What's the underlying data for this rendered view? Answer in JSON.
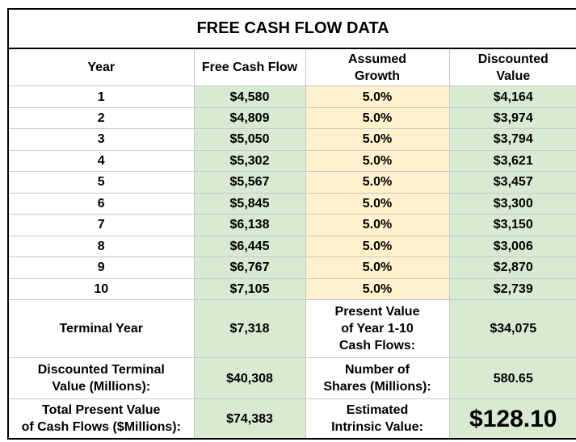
{
  "title": "FREE CASH FLOW DATA",
  "headers": {
    "year": "Year",
    "fcf": "Free Cash Flow",
    "growth_line1": "Assumed",
    "growth_line2": "Growth",
    "disc_line1": "Discounted",
    "disc_line2": "Value"
  },
  "rows": [
    {
      "year": "1",
      "fcf": "$4,580",
      "growth": "5.0%",
      "discounted": "$4,164"
    },
    {
      "year": "2",
      "fcf": "$4,809",
      "growth": "5.0%",
      "discounted": "$3,974"
    },
    {
      "year": "3",
      "fcf": "$5,050",
      "growth": "5.0%",
      "discounted": "$3,794"
    },
    {
      "year": "4",
      "fcf": "$5,302",
      "growth": "5.0%",
      "discounted": "$3,621"
    },
    {
      "year": "5",
      "fcf": "$5,567",
      "growth": "5.0%",
      "discounted": "$3,457"
    },
    {
      "year": "6",
      "fcf": "$5,845",
      "growth": "5.0%",
      "discounted": "$3,300"
    },
    {
      "year": "7",
      "fcf": "$6,138",
      "growth": "5.0%",
      "discounted": "$3,150"
    },
    {
      "year": "8",
      "fcf": "$6,445",
      "growth": "5.0%",
      "discounted": "$3,006"
    },
    {
      "year": "9",
      "fcf": "$6,767",
      "growth": "5.0%",
      "discounted": "$2,870"
    },
    {
      "year": "10",
      "fcf": "$7,105",
      "growth": "5.0%",
      "discounted": "$2,739"
    }
  ],
  "summary": {
    "terminal_year_label": "Terminal Year",
    "terminal_year_value": "$7,318",
    "pv_label_line1": "Present Value",
    "pv_label_line2": "of Year 1-10",
    "pv_label_line3": "Cash Flows:",
    "pv_value": "$34,075",
    "dtv_label_line1": "Discounted Terminal",
    "dtv_label_line2": "Value (Millions):",
    "dtv_value": "$40,308",
    "shares_label_line1": "Number of",
    "shares_label_line2": "Shares (Millions):",
    "shares_value": "580.65",
    "tpv_label_line1": "Total Present Value",
    "tpv_label_line2": "of Cash Flows ($Millions):",
    "tpv_value": "$74,383",
    "intrinsic_label_line1": "Estimated",
    "intrinsic_label_line2": "Intrinsic Value:",
    "intrinsic_value": "$128.10"
  },
  "colors": {
    "green_fill": "#d9ead3",
    "yellow_fill": "#fff2cc"
  }
}
